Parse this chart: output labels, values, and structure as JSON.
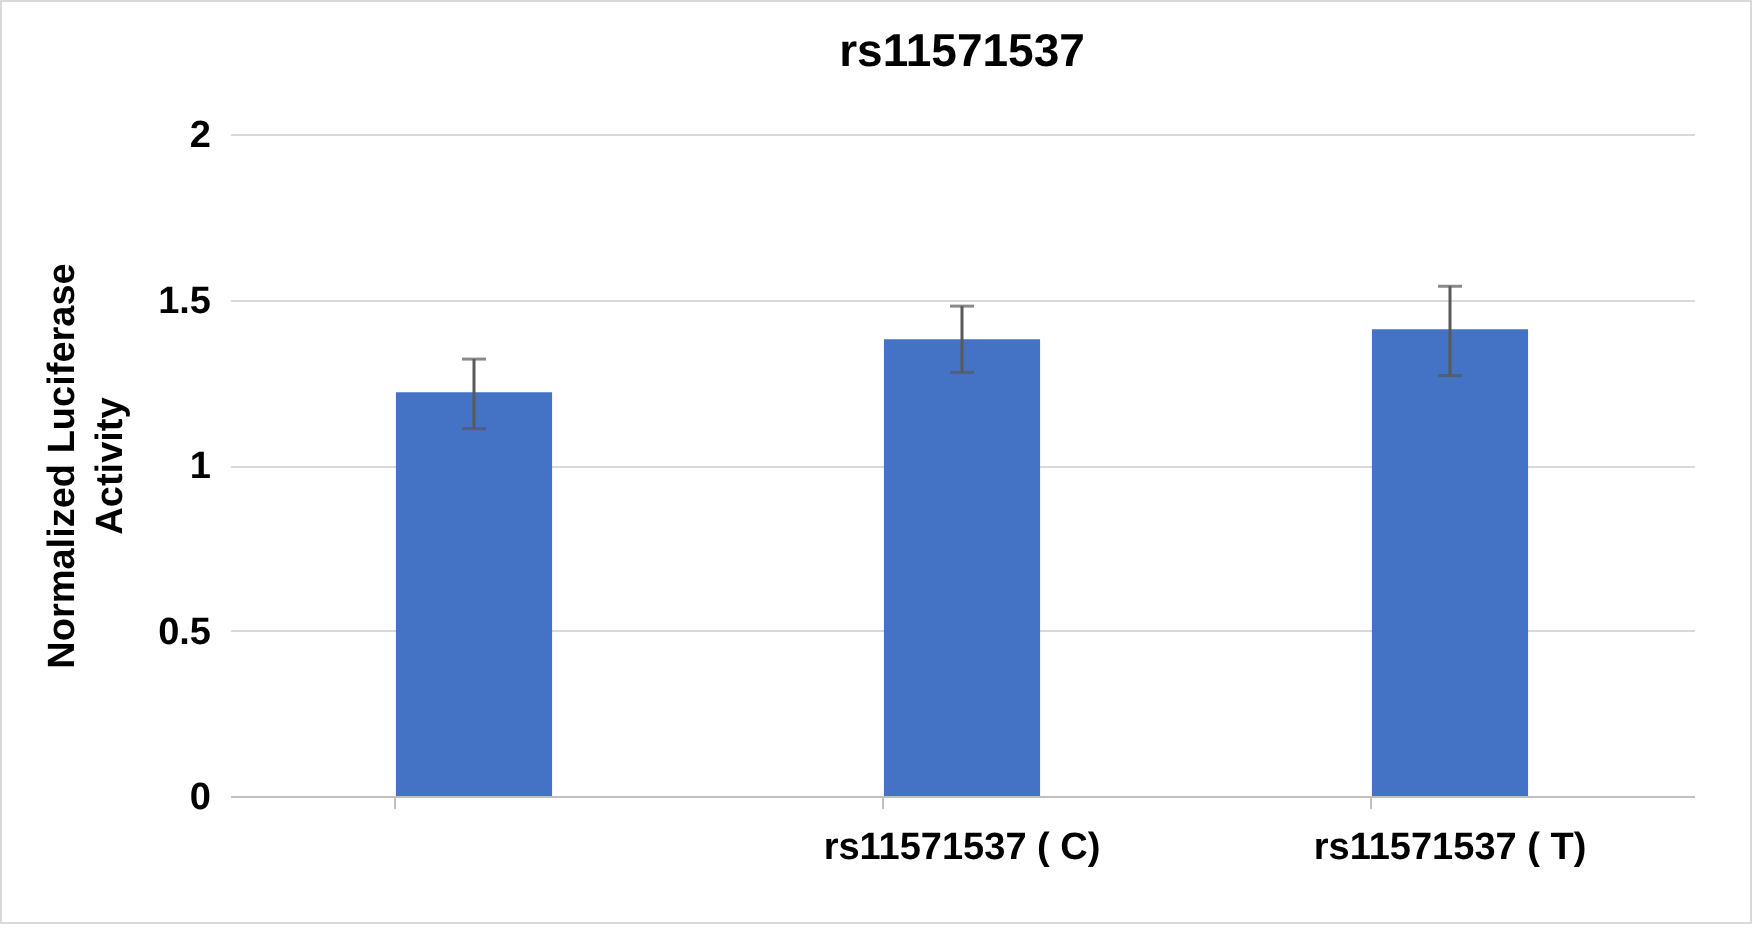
{
  "chart_data": {
    "type": "bar",
    "title": "rs11571537",
    "ylabel": "Normalized Luciferase\nActivity",
    "categories": [
      null,
      "rs11571537 ( C)",
      "rs11571537 ( T)"
    ],
    "values": [
      1.22,
      1.38,
      1.41
    ],
    "errors": [
      [
        1.11,
        1.32
      ],
      [
        1.28,
        1.48
      ],
      [
        1.27,
        1.54
      ]
    ],
    "color": "#4472c4",
    "ylim": [
      0,
      2
    ],
    "yticks": [
      0,
      0.5,
      1,
      1.5,
      2
    ],
    "grid": "y"
  }
}
